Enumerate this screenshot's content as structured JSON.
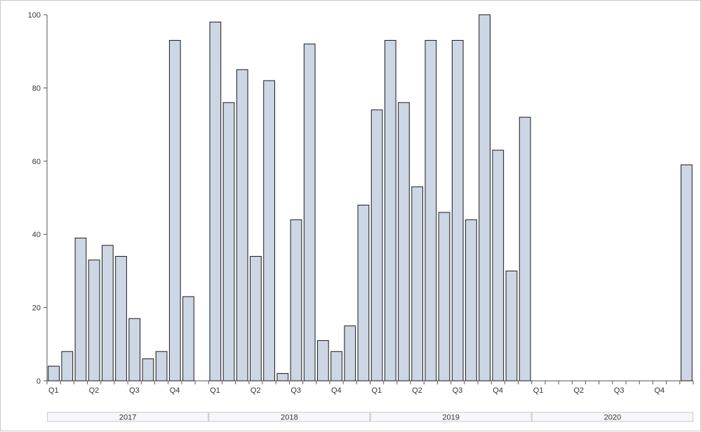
{
  "chart_data": {
    "type": "bar",
    "title": "",
    "xlabel": "",
    "ylabel": "",
    "ylim": [
      0,
      100
    ],
    "yticks": [
      "0",
      "20",
      "40",
      "60",
      "80",
      "100"
    ],
    "grid": false,
    "years": [
      "2017",
      "2018",
      "2019",
      "2020"
    ],
    "quarter_labels": [
      "Q1",
      "Q2",
      "Q3",
      "Q4"
    ],
    "months_per_year": 12,
    "values": [
      4,
      8,
      39,
      33,
      37,
      34,
      17,
      6,
      8,
      93,
      23,
      null,
      98,
      76,
      85,
      34,
      82,
      2,
      44,
      92,
      11,
      8,
      15,
      48,
      74,
      93,
      76,
      53,
      93,
      46,
      93,
      44,
      100,
      63,
      30,
      72,
      null,
      null,
      null,
      null,
      null,
      null,
      null,
      null,
      null,
      null,
      null,
      59
    ],
    "bar_color": "#ccd6e4",
    "bar_outline": "#1a1a1a"
  }
}
